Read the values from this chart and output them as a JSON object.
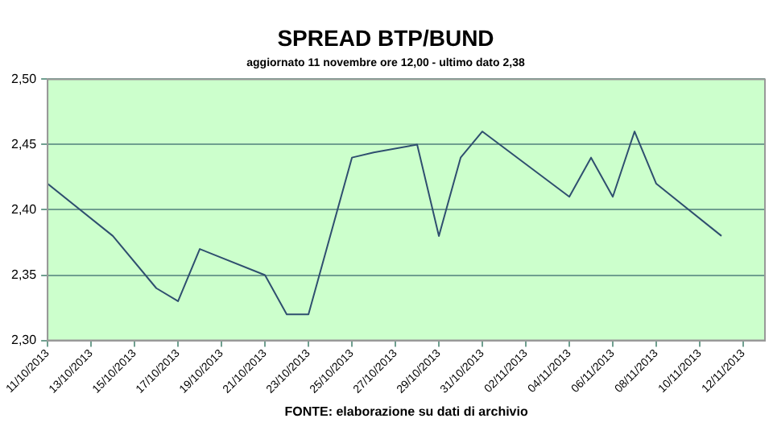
{
  "chart_data": {
    "type": "line",
    "title": "SPREAD BTP/BUND",
    "subtitle": "aggiornato 11 novembre ore 12,00 - ultimo dato 2,38",
    "annotations": [
      "FONTE: elaborazione su dati di archivio"
    ],
    "x": [
      "2013-10-11",
      "2013-10-14",
      "2013-10-16",
      "2013-10-17",
      "2013-10-18",
      "2013-10-21",
      "2013-10-22",
      "2013-10-23",
      "2013-10-25",
      "2013-10-26",
      "2013-10-28",
      "2013-10-29",
      "2013-10-30",
      "2013-10-31",
      "2013-11-04",
      "2013-11-05",
      "2013-11-06",
      "2013-11-07",
      "2013-11-08",
      "2013-11-11"
    ],
    "series": [
      {
        "color": "#2f4f6f",
        "values": [
          2.42,
          2.38,
          2.34,
          2.33,
          2.37,
          2.35,
          2.32,
          2.32,
          2.44,
          2.444,
          2.45,
          2.38,
          2.44,
          2.46,
          2.41,
          2.44,
          2.41,
          2.46,
          2.42,
          2.38
        ]
      }
    ],
    "xlim": [
      "2013-10-11",
      "2013-11-13"
    ],
    "xticks": [
      {
        "value": "2013-10-11",
        "label": "11/10/2013"
      },
      {
        "value": "2013-10-13",
        "label": "13/10/2013"
      },
      {
        "value": "2013-10-15",
        "label": "15/10/2013"
      },
      {
        "value": "2013-10-17",
        "label": "17/10/2013"
      },
      {
        "value": "2013-10-19",
        "label": "19/10/2013"
      },
      {
        "value": "2013-10-21",
        "label": "21/10/2013"
      },
      {
        "value": "2013-10-23",
        "label": "23/10/2013"
      },
      {
        "value": "2013-10-25",
        "label": "25/10/2013"
      },
      {
        "value": "2013-10-27",
        "label": "27/10/2013"
      },
      {
        "value": "2013-10-29",
        "label": "29/10/2013"
      },
      {
        "value": "2013-10-31",
        "label": "31/10/2013"
      },
      {
        "value": "2013-11-02",
        "label": "02/11/2013"
      },
      {
        "value": "2013-11-04",
        "label": "04/11/2013"
      },
      {
        "value": "2013-11-06",
        "label": "06/11/2013"
      },
      {
        "value": "2013-11-08",
        "label": "08/11/2013"
      },
      {
        "value": "2013-11-10",
        "label": "10/11/2013"
      },
      {
        "value": "2013-11-12",
        "label": "12/11/2013"
      }
    ],
    "ylim": [
      2.3,
      2.5
    ],
    "yticks": [
      {
        "value": 2.3,
        "label": "2,30"
      },
      {
        "value": 2.35,
        "label": "2,35"
      },
      {
        "value": 2.4,
        "label": "2,40"
      },
      {
        "value": 2.45,
        "label": "2,45"
      },
      {
        "value": 2.5,
        "label": "2,50"
      }
    ],
    "grid": "y",
    "legend": false,
    "marker": "none",
    "line_style": "solid"
  }
}
